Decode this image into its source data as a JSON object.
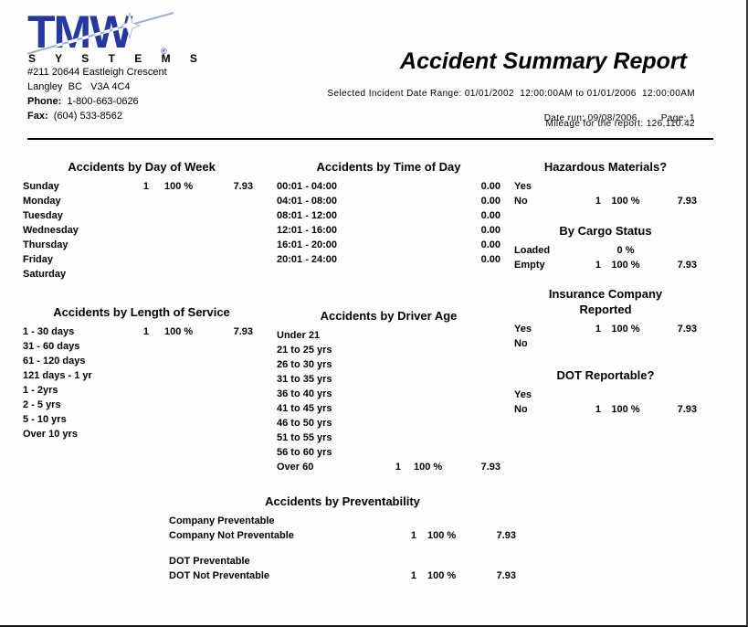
{
  "colors": {
    "logo_blue": "#2438a0",
    "text": "#000000"
  },
  "company": {
    "logo_text": "TMW",
    "logo_registered": "®",
    "logo_sub": "S Y S T E M S",
    "address_line1": "#211 20644 Eastleigh Crescent",
    "address_line2": "Langley  BC   V3A 4C4",
    "phone_label": "Phone:",
    "phone_value": "  1-800-663-0626",
    "fax_label": "Fax:",
    "fax_value": "  (604) 533-8562"
  },
  "header": {
    "title": "Accident Summary Report",
    "date_range": "Selected Incident Date Range: 01/01/2002  12:00:00AM to 01/01/2006  12:00:00AM",
    "date_run": "Date run: 09/08/2006",
    "page": "Page: 1",
    "mileage": "Mileage for the report: 126,110.42"
  },
  "sections": {
    "day_of_week": {
      "title": "Accidents by Day of Week",
      "rows": [
        {
          "label": "Sunday",
          "count": "1",
          "pct": "100 %",
          "value": "7.93"
        },
        {
          "label": "Monday"
        },
        {
          "label": "Tuesday"
        },
        {
          "label": "Wednesday"
        },
        {
          "label": "Thursday"
        },
        {
          "label": "Friday"
        },
        {
          "label": "Saturday"
        }
      ]
    },
    "time_of_day": {
      "title": "Accidents by Time of Day",
      "rows": [
        {
          "label": "00:01 - 04:00",
          "value": "0.00"
        },
        {
          "label": "04:01 - 08:00",
          "value": "0.00"
        },
        {
          "label": "08:01 - 12:00",
          "value": "0.00"
        },
        {
          "label": "12:01 - 16:00",
          "value": "0.00"
        },
        {
          "label": "16:01 - 20:00",
          "value": "0.00"
        },
        {
          "label": "20:01 - 24:00",
          "value": "0.00"
        }
      ]
    },
    "hazmat": {
      "title": "Hazardous Materials?",
      "rows": [
        {
          "label": "Yes"
        },
        {
          "label": "No",
          "count": "1",
          "pct": "100 %",
          "value": "7.93"
        }
      ]
    },
    "cargo_status": {
      "title": "By Cargo Status",
      "rows": [
        {
          "label": "Loaded",
          "pct": "0 %"
        },
        {
          "label": "Empty",
          "count": "1",
          "pct": "100 %",
          "value": "7.93"
        }
      ]
    },
    "length_of_service": {
      "title": "Accidents by Length of Service",
      "rows": [
        {
          "label": "1 - 30 days",
          "count": "1",
          "pct": "100 %",
          "value": "7.93"
        },
        {
          "label": "31 - 60 days"
        },
        {
          "label": "61 - 120 days"
        },
        {
          "label": "121 days - 1 yr"
        },
        {
          "label": "1 - 2yrs"
        },
        {
          "label": "2 - 5 yrs"
        },
        {
          "label": "5 - 10 yrs"
        },
        {
          "label": "Over 10 yrs"
        }
      ]
    },
    "driver_age": {
      "title": "Accidents by Driver Age",
      "rows": [
        {
          "label": "Under 21"
        },
        {
          "label": "21 to 25 yrs"
        },
        {
          "label": "26 to 30 yrs"
        },
        {
          "label": "31 to 35 yrs"
        },
        {
          "label": "36 to 40 yrs"
        },
        {
          "label": "41 to 45 yrs"
        },
        {
          "label": "46 to 50 yrs"
        },
        {
          "label": "51 to 55 yrs"
        },
        {
          "label": "56 to 60 yrs"
        },
        {
          "label": "Over 60",
          "count": "1",
          "pct": "100 %",
          "value": "7.93"
        }
      ]
    },
    "insurance": {
      "title": "Insurance Company\nReported",
      "rows": [
        {
          "label": "Yes",
          "count": "1",
          "pct": "100 %",
          "value": "7.93"
        },
        {
          "label": "No"
        }
      ]
    },
    "dot_reportable": {
      "title": "DOT Reportable?",
      "rows": [
        {
          "label": "Yes"
        },
        {
          "label": "No",
          "count": "1",
          "pct": "100 %",
          "value": "7.93"
        }
      ]
    },
    "preventability": {
      "title": "Accidents by Preventability",
      "group1": [
        {
          "label": "Company Preventable"
        },
        {
          "label": "Company Not Preventable",
          "count": "1",
          "pct": "100 %",
          "value": "7.93"
        }
      ],
      "group2": [
        {
          "label": "DOT Preventable"
        },
        {
          "label": "DOT Not Preventable",
          "count": "1",
          "pct": "100 %",
          "value": "7.93"
        }
      ]
    }
  }
}
